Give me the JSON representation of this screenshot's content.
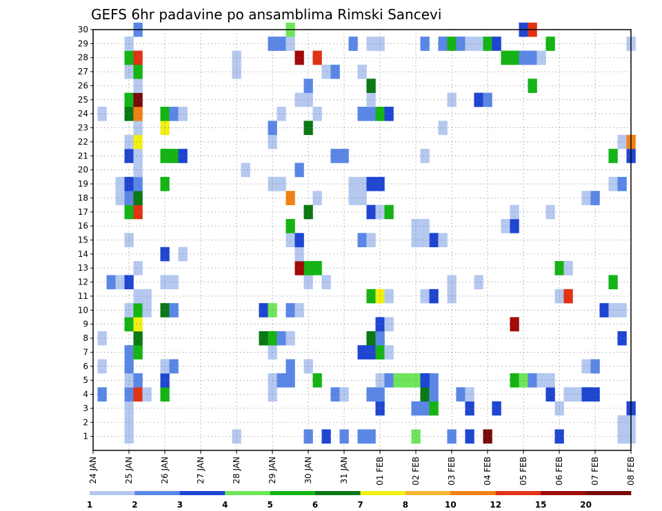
{
  "chart_data": {
    "type": "heatmap",
    "title": "GEFS 6hr padavine po ansamblima Rimski Sancevi",
    "xlabel": "",
    "ylabel": "",
    "x_tick_labels": [
      "24 JAN",
      "25 JAN",
      "26 JAN",
      "27 JAN",
      "28 JAN",
      "29 JAN",
      "30 JAN",
      "31 JAN",
      "01 FEB",
      "02 FEB",
      "03 FEB",
      "04 FEB",
      "05 FEB",
      "06 FEB",
      "07 FEB",
      "08 FEB"
    ],
    "y_tick_labels": [
      "1",
      "2",
      "3",
      "4",
      "5",
      "6",
      "7",
      "8",
      "9",
      "10",
      "11",
      "12",
      "13",
      "14",
      "15",
      "16",
      "17",
      "18",
      "19",
      "20",
      "21",
      "22",
      "23",
      "24",
      "25",
      "26",
      "27",
      "28",
      "29",
      "30"
    ],
    "xlim_days": [
      0,
      15
    ],
    "ylim_members": [
      0,
      30
    ],
    "grid": true,
    "colorbar": {
      "levels": [
        "1",
        "2",
        "3",
        "4",
        "5",
        "6",
        "7",
        "8",
        "10",
        "12",
        "15",
        "20"
      ],
      "colors": [
        "#b4c8f0",
        "#5a87e6",
        "#1e46d2",
        "#6ee65a",
        "#14b414",
        "#0a7814",
        "#f0f014",
        "#f5b432",
        "#f08214",
        "#e13214",
        "#a00a0a",
        "#780a0a"
      ]
    },
    "cells": [
      [
        1.0,
        1,
        1
      ],
      [
        1.0,
        2,
        1
      ],
      [
        4.0,
        1,
        1
      ],
      [
        6.0,
        1,
        2
      ],
      [
        6.5,
        1,
        3
      ],
      [
        7.5,
        1,
        2
      ],
      [
        7.75,
        1,
        2
      ],
      [
        7.0,
        1,
        2
      ],
      [
        9.0,
        1,
        4
      ],
      [
        10.0,
        1,
        2
      ],
      [
        10.5,
        1,
        3
      ],
      [
        11.0,
        1,
        12
      ],
      [
        13.0,
        1,
        3
      ],
      [
        14.75,
        1,
        1
      ],
      [
        15.0,
        1,
        1
      ],
      [
        1.0,
        3,
        1
      ],
      [
        10.5,
        3,
        3
      ],
      [
        11.25,
        3,
        3
      ],
      [
        15.0,
        3,
        3
      ],
      [
        5.0,
        4,
        1
      ],
      [
        5.0,
        5,
        1
      ],
      [
        7.75,
        4,
        2
      ],
      [
        8.0,
        3,
        3
      ],
      [
        9.5,
        5,
        2
      ],
      [
        10.25,
        4,
        2
      ],
      [
        10.5,
        4,
        1
      ],
      [
        12.75,
        4,
        3
      ],
      [
        13.75,
        4,
        1
      ],
      [
        15.0,
        2,
        1
      ],
      [
        14.75,
        2,
        1
      ],
      [
        1.0,
        4,
        2
      ],
      [
        1.25,
        4,
        10
      ],
      [
        1.5,
        4,
        1
      ],
      [
        0.25,
        4,
        2
      ],
      [
        2.0,
        4,
        5
      ],
      [
        6.75,
        4,
        2
      ],
      [
        7.0,
        4,
        1
      ],
      [
        8.0,
        4,
        2
      ],
      [
        9.0,
        3,
        2
      ],
      [
        9.25,
        3,
        2
      ],
      [
        9.5,
        3,
        5
      ],
      [
        9.25,
        4,
        6
      ],
      [
        9.25,
        5,
        3
      ],
      [
        9.5,
        4,
        2
      ],
      [
        13.0,
        3,
        1
      ],
      [
        13.25,
        4,
        1
      ],
      [
        13.5,
        4,
        1
      ],
      [
        13.75,
        4,
        3
      ],
      [
        14.0,
        4,
        3
      ],
      [
        1.0,
        5,
        1
      ],
      [
        1.25,
        5,
        2
      ],
      [
        2.0,
        5,
        3
      ],
      [
        5.25,
        5,
        2
      ],
      [
        5.5,
        5,
        2
      ],
      [
        6.25,
        5,
        5
      ],
      [
        8.0,
        5,
        1
      ],
      [
        8.25,
        5,
        2
      ],
      [
        8.5,
        5,
        4
      ],
      [
        8.75,
        5,
        4
      ],
      [
        9.0,
        5,
        4
      ],
      [
        9.25,
        5,
        3
      ],
      [
        11.75,
        5,
        5
      ],
      [
        12.0,
        5,
        4
      ],
      [
        12.25,
        5,
        2
      ],
      [
        12.5,
        5,
        1
      ],
      [
        12.75,
        5,
        1
      ],
      [
        0.25,
        6,
        1
      ],
      [
        1.0,
        6,
        2
      ],
      [
        2.0,
        6,
        1
      ],
      [
        2.25,
        6,
        2
      ],
      [
        5.5,
        6,
        2
      ],
      [
        6.0,
        6,
        1
      ],
      [
        13.75,
        6,
        1
      ],
      [
        14.0,
        6,
        2
      ],
      [
        1.0,
        7,
        2
      ],
      [
        1.25,
        7,
        5
      ],
      [
        5.0,
        7,
        1
      ],
      [
        7.5,
        7,
        3
      ],
      [
        7.75,
        7,
        3
      ],
      [
        8.0,
        7,
        5
      ],
      [
        8.25,
        7,
        1
      ],
      [
        0.25,
        8,
        1
      ],
      [
        1.25,
        8,
        6
      ],
      [
        4.75,
        8,
        6
      ],
      [
        5.0,
        8,
        5
      ],
      [
        5.25,
        8,
        2
      ],
      [
        5.5,
        8,
        1
      ],
      [
        7.75,
        8,
        6
      ],
      [
        8.0,
        8,
        2
      ],
      [
        14.75,
        8,
        3
      ],
      [
        1.0,
        9,
        5
      ],
      [
        1.25,
        9,
        7
      ],
      [
        8.0,
        9,
        3
      ],
      [
        8.25,
        9,
        1
      ],
      [
        11.75,
        9,
        11
      ],
      [
        1.0,
        10,
        1
      ],
      [
        1.25,
        10,
        5
      ],
      [
        1.5,
        10,
        1
      ],
      [
        2.0,
        10,
        6
      ],
      [
        2.25,
        10,
        2
      ],
      [
        4.75,
        10,
        3
      ],
      [
        5.0,
        10,
        4
      ],
      [
        5.5,
        10,
        2
      ],
      [
        5.75,
        10,
        1
      ],
      [
        14.25,
        10,
        3
      ],
      [
        14.5,
        10,
        1
      ],
      [
        14.75,
        10,
        1
      ],
      [
        1.25,
        11,
        1
      ],
      [
        1.5,
        11,
        1
      ],
      [
        7.75,
        11,
        5
      ],
      [
        8.0,
        11,
        7
      ],
      [
        8.25,
        11,
        1
      ],
      [
        9.25,
        11,
        1
      ],
      [
        9.5,
        11,
        3
      ],
      [
        10.0,
        11,
        1
      ],
      [
        13.0,
        11,
        1
      ],
      [
        13.25,
        11,
        10
      ],
      [
        0.5,
        12,
        2
      ],
      [
        0.75,
        12,
        1
      ],
      [
        1.0,
        12,
        3
      ],
      [
        2.0,
        12,
        1
      ],
      [
        2.25,
        12,
        1
      ],
      [
        6.0,
        12,
        1
      ],
      [
        6.5,
        12,
        1
      ],
      [
        10.0,
        12,
        1
      ],
      [
        10.75,
        12,
        1
      ],
      [
        14.5,
        12,
        5
      ],
      [
        1.25,
        13,
        1
      ],
      [
        6.0,
        13,
        5
      ],
      [
        6.25,
        13,
        5
      ],
      [
        5.75,
        13,
        11
      ],
      [
        13.0,
        13,
        5
      ],
      [
        13.25,
        13,
        1
      ],
      [
        2.0,
        14,
        3
      ],
      [
        2.5,
        14,
        1
      ],
      [
        5.75,
        14,
        1
      ],
      [
        1.0,
        15,
        1
      ],
      [
        5.5,
        15,
        1
      ],
      [
        5.75,
        15,
        3
      ],
      [
        7.5,
        15,
        2
      ],
      [
        7.75,
        15,
        1
      ],
      [
        9.5,
        15,
        3
      ],
      [
        9.75,
        15,
        1
      ],
      [
        11.5,
        16,
        1
      ],
      [
        11.75,
        16,
        3
      ],
      [
        5.5,
        16,
        5
      ],
      [
        9.0,
        16,
        1
      ],
      [
        9.25,
        16,
        1
      ],
      [
        9.0,
        15,
        1
      ],
      [
        9.25,
        15,
        1
      ],
      [
        1.0,
        17,
        5
      ],
      [
        1.25,
        17,
        10
      ],
      [
        6.0,
        17,
        6
      ],
      [
        7.75,
        17,
        3
      ],
      [
        8.0,
        17,
        1
      ],
      [
        8.25,
        17,
        5
      ],
      [
        11.75,
        17,
        1
      ],
      [
        12.75,
        17,
        1
      ],
      [
        0.75,
        18,
        1
      ],
      [
        1.0,
        18,
        2
      ],
      [
        1.25,
        18,
        6
      ],
      [
        5.5,
        18,
        9
      ],
      [
        6.25,
        18,
        1
      ],
      [
        7.25,
        18,
        1
      ],
      [
        7.5,
        18,
        1
      ],
      [
        13.75,
        18,
        1
      ],
      [
        14.0,
        18,
        2
      ],
      [
        0.75,
        19,
        1
      ],
      [
        1.0,
        19,
        3
      ],
      [
        1.25,
        19,
        2
      ],
      [
        2.0,
        19,
        5
      ],
      [
        5.0,
        19,
        1
      ],
      [
        5.25,
        19,
        1
      ],
      [
        7.25,
        19,
        1
      ],
      [
        7.5,
        19,
        1
      ],
      [
        7.75,
        19,
        3
      ],
      [
        8.0,
        19,
        3
      ],
      [
        14.5,
        19,
        1
      ],
      [
        14.75,
        19,
        2
      ],
      [
        1.25,
        20,
        1
      ],
      [
        4.25,
        20,
        1
      ],
      [
        5.75,
        20,
        2
      ],
      [
        1.0,
        21,
        3
      ],
      [
        1.25,
        21,
        1
      ],
      [
        2.0,
        21,
        5
      ],
      [
        2.25,
        21,
        5
      ],
      [
        2.5,
        21,
        3
      ],
      [
        6.75,
        21,
        2
      ],
      [
        7.0,
        21,
        2
      ],
      [
        9.25,
        21,
        1
      ],
      [
        14.5,
        21,
        5
      ],
      [
        15.0,
        21,
        3
      ],
      [
        1.0,
        22,
        1
      ],
      [
        1.25,
        22,
        7
      ],
      [
        5.0,
        22,
        1
      ],
      [
        14.75,
        22,
        1
      ],
      [
        15.0,
        22,
        9
      ],
      [
        1.25,
        23,
        1
      ],
      [
        2.0,
        23,
        7
      ],
      [
        5.0,
        23,
        2
      ],
      [
        6.0,
        23,
        6
      ],
      [
        9.75,
        23,
        1
      ],
      [
        0.25,
        24,
        1
      ],
      [
        1.0,
        24,
        6
      ],
      [
        1.25,
        24,
        9
      ],
      [
        2.0,
        24,
        5
      ],
      [
        2.25,
        24,
        2
      ],
      [
        2.5,
        24,
        1
      ],
      [
        5.25,
        24,
        1
      ],
      [
        6.25,
        24,
        1
      ],
      [
        7.5,
        24,
        2
      ],
      [
        7.75,
        24,
        2
      ],
      [
        8.0,
        24,
        5
      ],
      [
        8.25,
        24,
        3
      ],
      [
        1.0,
        25,
        5
      ],
      [
        1.25,
        25,
        12
      ],
      [
        5.75,
        25,
        1
      ],
      [
        6.0,
        25,
        1
      ],
      [
        7.75,
        25,
        1
      ],
      [
        10.0,
        25,
        1
      ],
      [
        10.75,
        25,
        3
      ],
      [
        11.0,
        25,
        2
      ],
      [
        1.25,
        26,
        1
      ],
      [
        6.0,
        26,
        2
      ],
      [
        7.75,
        26,
        6
      ],
      [
        12.25,
        26,
        5
      ],
      [
        1.0,
        27,
        1
      ],
      [
        1.25,
        27,
        5
      ],
      [
        4.0,
        27,
        1
      ],
      [
        6.5,
        27,
        1
      ],
      [
        6.75,
        27,
        2
      ],
      [
        7.5,
        27,
        1
      ],
      [
        1.0,
        28,
        5
      ],
      [
        1.25,
        28,
        10
      ],
      [
        4.0,
        28,
        1
      ],
      [
        5.75,
        28,
        11
      ],
      [
        6.25,
        28,
        10
      ],
      [
        11.5,
        28,
        5
      ],
      [
        11.75,
        28,
        5
      ],
      [
        12.0,
        28,
        2
      ],
      [
        12.25,
        28,
        2
      ],
      [
        12.5,
        28,
        1
      ],
      [
        1.0,
        29,
        1
      ],
      [
        5.0,
        29,
        2
      ],
      [
        5.25,
        29,
        2
      ],
      [
        5.5,
        29,
        1
      ],
      [
        7.25,
        29,
        2
      ],
      [
        7.75,
        29,
        1
      ],
      [
        8.0,
        29,
        1
      ],
      [
        9.25,
        29,
        2
      ],
      [
        9.75,
        29,
        2
      ],
      [
        10.0,
        29,
        5
      ],
      [
        10.25,
        29,
        2
      ],
      [
        10.5,
        29,
        1
      ],
      [
        10.75,
        29,
        1
      ],
      [
        11.0,
        29,
        5
      ],
      [
        11.25,
        29,
        3
      ],
      [
        12.75,
        29,
        5
      ],
      [
        15.0,
        29,
        1
      ],
      [
        1.25,
        30,
        2
      ],
      [
        5.5,
        30,
        4
      ],
      [
        12.0,
        30,
        3
      ],
      [
        12.25,
        30,
        10
      ]
    ]
  }
}
